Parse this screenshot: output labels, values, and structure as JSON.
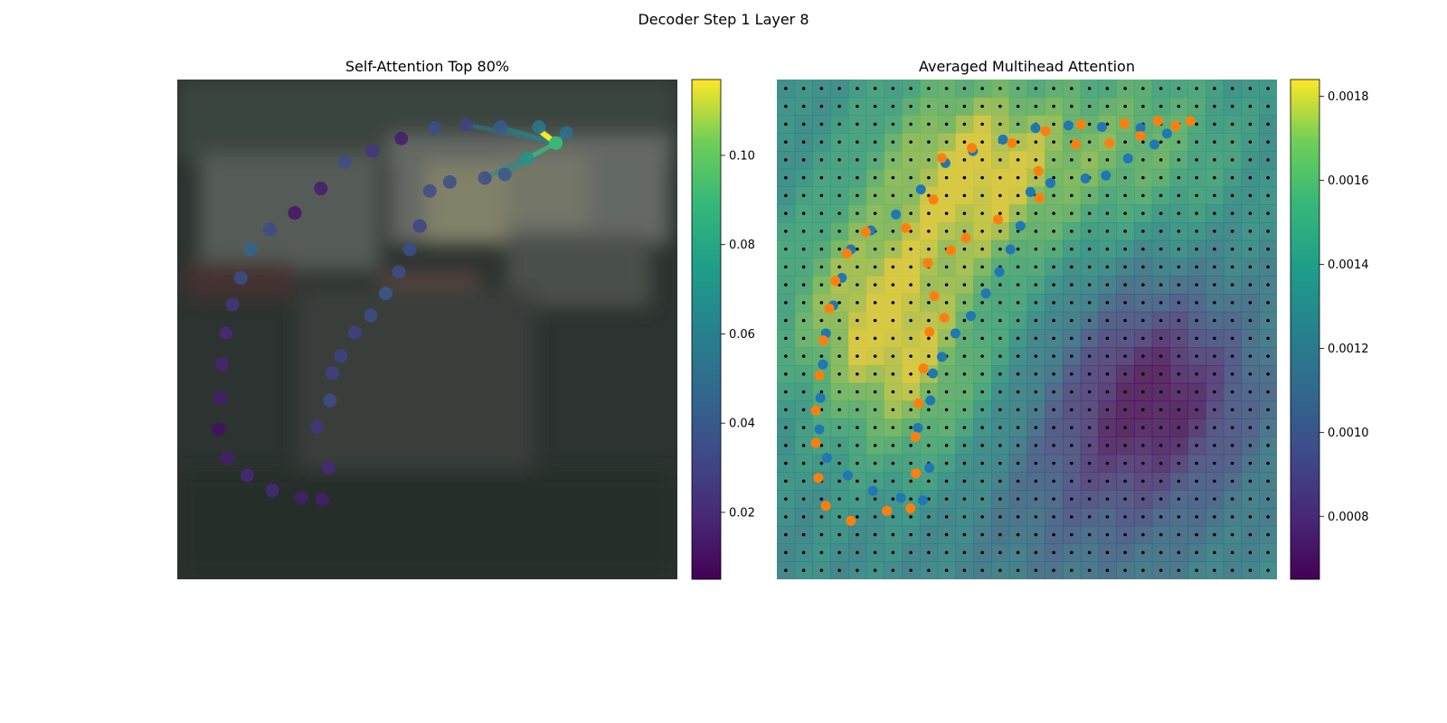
{
  "figure": {
    "suptitle": "Decoder Step 1 Layer 8"
  },
  "panels": {
    "left_title": "Self-Attention Top 80%",
    "right_title": "Averaged Multihead Attention"
  },
  "colorbars": {
    "left": {
      "min": 0.005,
      "max": 0.117,
      "ticks": [
        "0.02",
        "0.04",
        "0.06",
        "0.08",
        "0.10"
      ],
      "tick_values": [
        0.02,
        0.04,
        0.06,
        0.08,
        0.1
      ],
      "colormap": "viridis"
    },
    "right": {
      "min": 0.00065,
      "max": 0.00184,
      "ticks": [
        "0.0008",
        "0.0010",
        "0.0012",
        "0.0014",
        "0.0016",
        "0.0018"
      ],
      "tick_values": [
        0.0008,
        0.001,
        0.0012,
        0.0014,
        0.0016,
        0.0018
      ],
      "colormap": "viridis"
    }
  },
  "chart_data": [
    {
      "type": "scatter",
      "title": "Self-Attention Top 80%",
      "xlim": [
        0,
        1
      ],
      "ylim": [
        0,
        1
      ],
      "note_units": "normalized image coordinates (0=left/top, 1=right/bottom)",
      "query_point": {
        "x": 0.757,
        "y": 0.127,
        "value": 0.09
      },
      "points": [
        {
          "x": 0.778,
          "y": 0.107,
          "v": 0.05
        },
        {
          "x": 0.723,
          "y": 0.095,
          "v": 0.055
        },
        {
          "x": 0.647,
          "y": 0.095,
          "v": 0.04
        },
        {
          "x": 0.578,
          "y": 0.09,
          "v": 0.03
        },
        {
          "x": 0.515,
          "y": 0.097,
          "v": 0.035
        },
        {
          "x": 0.448,
          "y": 0.118,
          "v": 0.015
        },
        {
          "x": 0.39,
          "y": 0.143,
          "v": 0.025
        },
        {
          "x": 0.335,
          "y": 0.165,
          "v": 0.035
        },
        {
          "x": 0.287,
          "y": 0.218,
          "v": 0.015
        },
        {
          "x": 0.235,
          "y": 0.267,
          "v": 0.012
        },
        {
          "x": 0.185,
          "y": 0.3,
          "v": 0.035
        },
        {
          "x": 0.147,
          "y": 0.34,
          "v": 0.045
        },
        {
          "x": 0.127,
          "y": 0.397,
          "v": 0.035
        },
        {
          "x": 0.11,
          "y": 0.45,
          "v": 0.025
        },
        {
          "x": 0.097,
          "y": 0.507,
          "v": 0.02
        },
        {
          "x": 0.09,
          "y": 0.57,
          "v": 0.018
        },
        {
          "x": 0.085,
          "y": 0.637,
          "v": 0.015
        },
        {
          "x": 0.083,
          "y": 0.7,
          "v": 0.01
        },
        {
          "x": 0.1,
          "y": 0.757,
          "v": 0.015
        },
        {
          "x": 0.14,
          "y": 0.792,
          "v": 0.02
        },
        {
          "x": 0.19,
          "y": 0.822,
          "v": 0.02
        },
        {
          "x": 0.248,
          "y": 0.837,
          "v": 0.015
        },
        {
          "x": 0.29,
          "y": 0.84,
          "v": 0.015
        },
        {
          "x": 0.303,
          "y": 0.777,
          "v": 0.02
        },
        {
          "x": 0.28,
          "y": 0.695,
          "v": 0.025
        },
        {
          "x": 0.305,
          "y": 0.642,
          "v": 0.035
        },
        {
          "x": 0.31,
          "y": 0.587,
          "v": 0.03
        },
        {
          "x": 0.327,
          "y": 0.553,
          "v": 0.03
        },
        {
          "x": 0.355,
          "y": 0.507,
          "v": 0.03
        },
        {
          "x": 0.387,
          "y": 0.472,
          "v": 0.035
        },
        {
          "x": 0.417,
          "y": 0.428,
          "v": 0.04
        },
        {
          "x": 0.443,
          "y": 0.385,
          "v": 0.035
        },
        {
          "x": 0.465,
          "y": 0.34,
          "v": 0.035
        },
        {
          "x": 0.485,
          "y": 0.293,
          "v": 0.03
        },
        {
          "x": 0.505,
          "y": 0.223,
          "v": 0.035
        },
        {
          "x": 0.545,
          "y": 0.205,
          "v": 0.035
        },
        {
          "x": 0.615,
          "y": 0.197,
          "v": 0.035
        },
        {
          "x": 0.655,
          "y": 0.19,
          "v": 0.04
        },
        {
          "x": 0.7,
          "y": 0.158,
          "v": 0.07
        }
      ]
    },
    {
      "type": "heatmap",
      "title": "Averaged Multihead Attention",
      "xlim": [
        0,
        1
      ],
      "ylim": [
        0,
        1
      ],
      "grid": "28x28 cells with reference dots at cell centers",
      "blue_points": [
        {
          "x": 0.78,
          "y": 0.108
        },
        {
          "x": 0.755,
          "y": 0.13
        },
        {
          "x": 0.727,
          "y": 0.097
        },
        {
          "x": 0.65,
          "y": 0.095
        },
        {
          "x": 0.583,
          "y": 0.092
        },
        {
          "x": 0.517,
          "y": 0.097
        },
        {
          "x": 0.452,
          "y": 0.12
        },
        {
          "x": 0.392,
          "y": 0.143
        },
        {
          "x": 0.337,
          "y": 0.167
        },
        {
          "x": 0.288,
          "y": 0.22
        },
        {
          "x": 0.238,
          "y": 0.27
        },
        {
          "x": 0.188,
          "y": 0.302
        },
        {
          "x": 0.148,
          "y": 0.34
        },
        {
          "x": 0.13,
          "y": 0.397
        },
        {
          "x": 0.113,
          "y": 0.452
        },
        {
          "x": 0.098,
          "y": 0.508
        },
        {
          "x": 0.092,
          "y": 0.57
        },
        {
          "x": 0.087,
          "y": 0.637
        },
        {
          "x": 0.085,
          "y": 0.7
        },
        {
          "x": 0.1,
          "y": 0.757
        },
        {
          "x": 0.142,
          "y": 0.792
        },
        {
          "x": 0.192,
          "y": 0.823
        },
        {
          "x": 0.248,
          "y": 0.837
        },
        {
          "x": 0.292,
          "y": 0.842
        },
        {
          "x": 0.305,
          "y": 0.777
        },
        {
          "x": 0.282,
          "y": 0.697
        },
        {
          "x": 0.307,
          "y": 0.642
        },
        {
          "x": 0.312,
          "y": 0.588
        },
        {
          "x": 0.33,
          "y": 0.555
        },
        {
          "x": 0.357,
          "y": 0.508
        },
        {
          "x": 0.388,
          "y": 0.473
        },
        {
          "x": 0.418,
          "y": 0.428
        },
        {
          "x": 0.445,
          "y": 0.385
        },
        {
          "x": 0.467,
          "y": 0.34
        },
        {
          "x": 0.487,
          "y": 0.293
        },
        {
          "x": 0.507,
          "y": 0.225
        },
        {
          "x": 0.547,
          "y": 0.207
        },
        {
          "x": 0.617,
          "y": 0.198
        },
        {
          "x": 0.658,
          "y": 0.192
        },
        {
          "x": 0.702,
          "y": 0.158
        }
      ],
      "orange_points": [
        {
          "x": 0.827,
          "y": 0.083
        },
        {
          "x": 0.797,
          "y": 0.093
        },
        {
          "x": 0.762,
          "y": 0.083
        },
        {
          "x": 0.727,
          "y": 0.113
        },
        {
          "x": 0.695,
          "y": 0.088
        },
        {
          "x": 0.665,
          "y": 0.127
        },
        {
          "x": 0.608,
          "y": 0.09
        },
        {
          "x": 0.598,
          "y": 0.13
        },
        {
          "x": 0.537,
          "y": 0.103
        },
        {
          "x": 0.47,
          "y": 0.127
        },
        {
          "x": 0.523,
          "y": 0.183
        },
        {
          "x": 0.525,
          "y": 0.237
        },
        {
          "x": 0.442,
          "y": 0.28
        },
        {
          "x": 0.378,
          "y": 0.317
        },
        {
          "x": 0.313,
          "y": 0.24
        },
        {
          "x": 0.258,
          "y": 0.297
        },
        {
          "x": 0.348,
          "y": 0.342
        },
        {
          "x": 0.302,
          "y": 0.367
        },
        {
          "x": 0.315,
          "y": 0.433
        },
        {
          "x": 0.335,
          "y": 0.477
        },
        {
          "x": 0.305,
          "y": 0.505
        },
        {
          "x": 0.293,
          "y": 0.578
        },
        {
          "x": 0.283,
          "y": 0.648
        },
        {
          "x": 0.277,
          "y": 0.715
        },
        {
          "x": 0.278,
          "y": 0.788
        },
        {
          "x": 0.267,
          "y": 0.858
        },
        {
          "x": 0.22,
          "y": 0.863
        },
        {
          "x": 0.148,
          "y": 0.883
        },
        {
          "x": 0.098,
          "y": 0.853
        },
        {
          "x": 0.083,
          "y": 0.797
        },
        {
          "x": 0.078,
          "y": 0.727
        },
        {
          "x": 0.078,
          "y": 0.662
        },
        {
          "x": 0.085,
          "y": 0.592
        },
        {
          "x": 0.093,
          "y": 0.522
        },
        {
          "x": 0.105,
          "y": 0.458
        },
        {
          "x": 0.117,
          "y": 0.403
        },
        {
          "x": 0.14,
          "y": 0.348
        },
        {
          "x": 0.178,
          "y": 0.305
        },
        {
          "x": 0.33,
          "y": 0.157
        },
        {
          "x": 0.39,
          "y": 0.137
        }
      ]
    }
  ]
}
